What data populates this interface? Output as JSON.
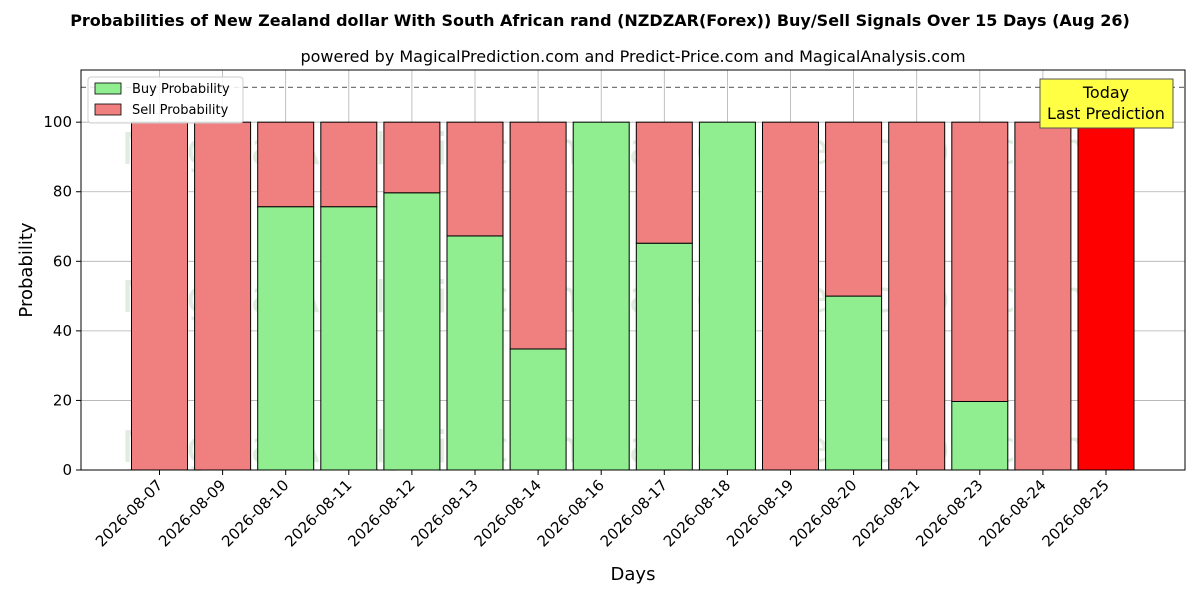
{
  "chart_data": {
    "type": "bar",
    "title": "Probabilities of New Zealand dollar With South African rand (NZDZAR(Forex)) Buy/Sell Signals Over 15 Days (Aug 26)",
    "subtitle": "powered by MagicalPrediction.com and Predict-Price.com and MagicalAnalysis.com",
    "xlabel": "Days",
    "ylabel": "Probability",
    "ylim": [
      0,
      115
    ],
    "yticks": [
      0,
      20,
      40,
      60,
      80,
      100
    ],
    "grid": true,
    "legend_position": "top-left",
    "threshold_line": 110,
    "categories": [
      "2026-08-07",
      "2026-08-09",
      "2026-08-10",
      "2026-08-11",
      "2026-08-12",
      "2026-08-13",
      "2026-08-14",
      "2026-08-16",
      "2026-08-17",
      "2026-08-18",
      "2026-08-19",
      "2026-08-20",
      "2026-08-21",
      "2026-08-23",
      "2026-08-24",
      "2026-08-25"
    ],
    "series": [
      {
        "name": "Buy Probability",
        "color": "#90ee90",
        "values": [
          0,
          0,
          75.7,
          75.7,
          79.7,
          67.3,
          34.8,
          100,
          65.2,
          100,
          0,
          50,
          0,
          19.7,
          0,
          0
        ]
      },
      {
        "name": "Sell Probability",
        "color": "#f08080",
        "values": [
          100,
          100,
          24.3,
          24.3,
          20.3,
          32.7,
          65.2,
          0,
          34.8,
          0,
          100,
          50,
          100,
          80.3,
          100,
          100
        ]
      }
    ],
    "highlight": {
      "category": "2026-08-25",
      "color": "#ff0000"
    },
    "annotation": {
      "lines": [
        "Today",
        "Last Prediction"
      ],
      "background": "#ffff44"
    },
    "watermarks": [
      "MagicalAnalysis.com",
      "MagicalPrediction.com"
    ]
  }
}
